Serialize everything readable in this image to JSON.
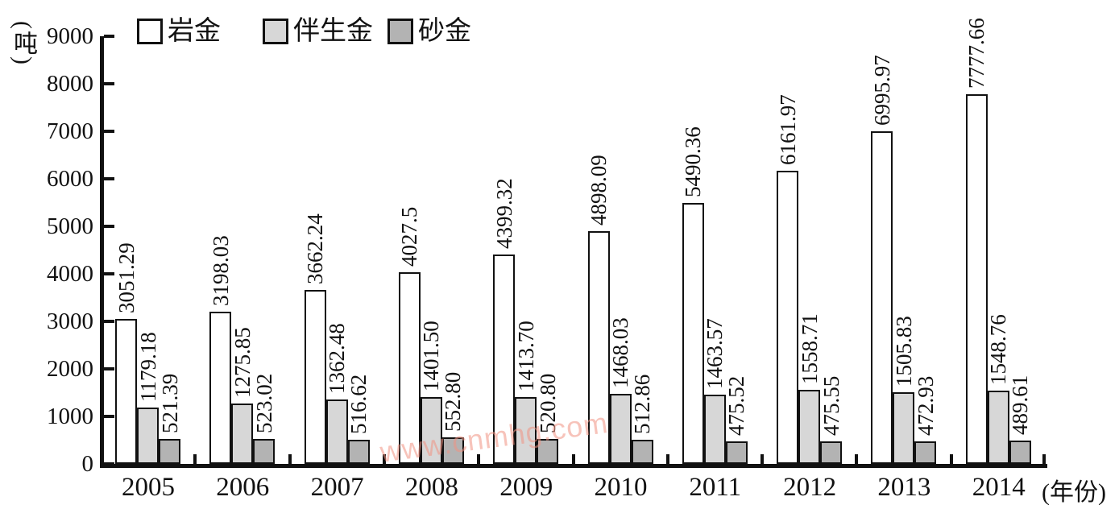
{
  "watermark": "www.cnmhg.com",
  "y_axis": {
    "unit_label": "(吨)",
    "ticks": [
      0,
      1000,
      2000,
      3000,
      4000,
      5000,
      6000,
      7000,
      8000,
      9000
    ]
  },
  "x_axis": {
    "unit_label": "(年份)"
  },
  "legend": {
    "position": "top",
    "items": [
      {
        "label": "岩金",
        "color": "#ffffff"
      },
      {
        "label": "伴生金",
        "color": "#d7d7d7"
      },
      {
        "label": "砂金",
        "color": "#b3b3b3"
      }
    ]
  },
  "chart_data": {
    "type": "bar",
    "title": "",
    "xlabel": "(年份)",
    "ylabel": "(吨)",
    "ylim": [
      0,
      9000
    ],
    "y_tick_step": 1000,
    "grid": false,
    "legend_position": "top",
    "categories": [
      "2005",
      "2006",
      "2007",
      "2008",
      "2009",
      "2010",
      "2011",
      "2012",
      "2013",
      "2014"
    ],
    "series": [
      {
        "name": "岩金",
        "key": "rock-gold",
        "color": "#ffffff",
        "values": [
          3051.29,
          3198.03,
          3662.24,
          4027.5,
          4399.32,
          4898.09,
          5490.36,
          6161.97,
          6995.97,
          7777.66
        ],
        "value_labels": [
          "3051.29",
          "3198.03",
          "3662.24",
          "4027.5",
          "4399.32",
          "4898.09",
          "5490.36",
          "6161.97",
          "6995.97",
          "7777.66"
        ]
      },
      {
        "name": "伴生金",
        "key": "associated-gold",
        "color": "#d7d7d7",
        "values": [
          1179.18,
          1275.85,
          1362.48,
          1401.5,
          1413.7,
          1468.03,
          1463.57,
          1558.71,
          1505.83,
          1548.76
        ],
        "value_labels": [
          "1179.18",
          "1275.85",
          "1362.48",
          "1401.50",
          "1413.70",
          "1468.03",
          "1463.57",
          "1558.71",
          "1505.83",
          "1548.76"
        ]
      },
      {
        "name": "砂金",
        "key": "placer-gold",
        "color": "#b3b3b3",
        "values": [
          521.39,
          523.02,
          516.62,
          552.8,
          520.8,
          512.86,
          475.52,
          475.55,
          472.93,
          489.61
        ],
        "value_labels": [
          "521.39",
          "523.02",
          "516.62",
          "552.80",
          "520.80",
          "512.86",
          "475.52",
          "475.55",
          "472.93",
          "489.61"
        ]
      }
    ]
  }
}
